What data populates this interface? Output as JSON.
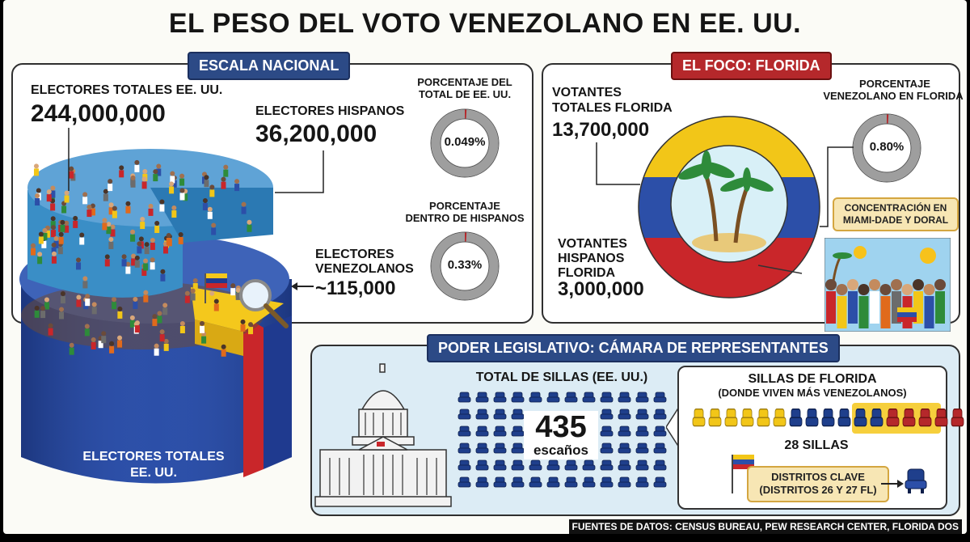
{
  "title": "EL PESO DEL VOTO VENEZOLANO EN EE. UU.",
  "national": {
    "tag": "ESCALA NACIONAL",
    "total_label": "ELECTORES TOTALES EE. UU.",
    "total_value": "244,000,000",
    "hispanic_label": "ELECTORES HISPANOS",
    "hispanic_value": "36,200,000",
    "venezuelan_label_1": "ELECTORES",
    "venezuelan_label_2": "VENEZOLANOS",
    "venezuelan_value": "~115,000",
    "base_label_1": "ELECTORES TOTALES",
    "base_label_2": "EE. UU.",
    "donut1_label_1": "PORCENTAJE DEL",
    "donut1_label_2": "TOTAL DE EE. UU.",
    "donut1_value": "0.049%",
    "donut1_fraction": 0.00049,
    "donut2_label_1": "PORCENTAJE",
    "donut2_label_2": "DENTRO DE HISPANOS",
    "donut2_value": "0.33%",
    "donut2_fraction": 0.0033
  },
  "florida": {
    "tag": "EL FOCO: FLORIDA",
    "total_label_1": "VOTANTES",
    "total_label_2": "TOTALES FLORIDA",
    "total_value": "13,700,000",
    "hispanic_label_1": "VOTANTES",
    "hispanic_label_2": "HISPANOS",
    "hispanic_label_3": "FLORIDA",
    "hispanic_value": "3,000,000",
    "donut_label_1": "PORCENTAJE",
    "donut_label_2": "VENEZOLANO EN FLORIDA",
    "donut_value": "0.80%",
    "donut_fraction": 0.008,
    "note_1": "CONCENTRACIÓN EN",
    "note_2": "MIAMI-DADE Y DORAL"
  },
  "legislative": {
    "tag": "PODER LEGISLATIVO: CÁMARA DE REPRESENTANTES",
    "total_label": "TOTAL DE SILLAS (EE. UU.)",
    "total_value": "435",
    "total_unit": "escaños",
    "fl_title": "SILLAS DE FLORIDA",
    "fl_subtitle": "(DONDE VIVEN MÁS VENEZOLANOS)",
    "fl_seats_label": "28 SILLAS",
    "key_1": "DISTRITOS CLAVE",
    "key_2": "(DISTRITOS 26 Y 27 FL)"
  },
  "footer": "FUENTES DE DATOS: CENSUS BUREAU, PEW RESEARCH CENTER, FLORIDA DOS",
  "colors": {
    "blue": "#2c4a86",
    "red": "#b5282b",
    "yellow": "#f2c618",
    "donut_ring": "#9e9e9e",
    "seat_blue": "#1f3f8c"
  }
}
